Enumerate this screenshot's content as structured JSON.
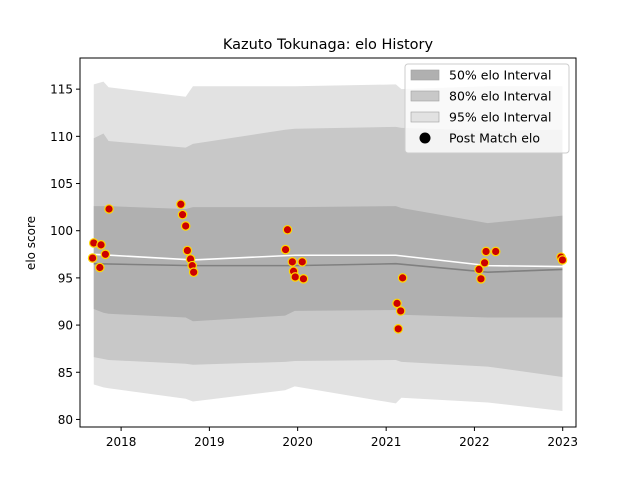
{
  "chart_data": {
    "type": "line",
    "title": "Kazuto Tokunaga: elo History",
    "xlabel": "",
    "ylabel": "elo score",
    "xlim": [
      "2017-07-15",
      "2023-02-25"
    ],
    "ylim": [
      79.2,
      118.3
    ],
    "xticks": [
      {
        "date": "2018-01-01",
        "label": "2018"
      },
      {
        "date": "2019-01-01",
        "label": "2019"
      },
      {
        "date": "2020-01-01",
        "label": "2020"
      },
      {
        "date": "2021-01-01",
        "label": "2021"
      },
      {
        "date": "2022-01-01",
        "label": "2022"
      },
      {
        "date": "2023-01-01",
        "label": "2023"
      }
    ],
    "yticks": [
      80,
      85,
      90,
      95,
      100,
      105,
      110,
      115
    ],
    "grid": false,
    "legend_position": "top-right",
    "colors": {
      "band_50": "#b0b0b0",
      "band_80": "#c8c8c8",
      "band_95": "#e2e2e2",
      "mean_line": "#808080",
      "median_line": "#ffffff",
      "marker_fill": "#cc0000",
      "marker_edge": "#ffd700"
    },
    "series": [
      {
        "name": "50% elo Interval",
        "kind": "band",
        "color": "#b0b0b0"
      },
      {
        "name": "80% elo Interval",
        "kind": "band",
        "color": "#c8c8c8"
      },
      {
        "name": "95% elo Interval",
        "kind": "band",
        "color": "#e2e2e2"
      },
      {
        "name": "Post Match elo",
        "kind": "marker",
        "color": "#000000"
      }
    ],
    "bands": {
      "x": [
        "2017-09-10",
        "2017-10-20",
        "2017-11-10",
        "2018-09-25",
        "2018-10-25",
        "2019-11-10",
        "2019-12-20",
        "2021-02-10",
        "2021-03-05",
        "2022-02-25",
        "2022-12-31"
      ],
      "p95_upper": [
        115.5,
        115.8,
        115.2,
        114.2,
        115.3,
        115.3,
        115.3,
        115.5,
        115.0,
        115.3,
        115.3
      ],
      "p80_upper": [
        109.8,
        110.3,
        109.5,
        108.8,
        109.2,
        110.7,
        110.8,
        111.0,
        110.9,
        110.6,
        110.7
      ],
      "p50_upper": [
        102.6,
        102.6,
        102.6,
        102.3,
        102.5,
        102.5,
        102.5,
        102.6,
        102.4,
        100.8,
        101.6
      ],
      "p50_lower": [
        91.7,
        91.3,
        91.2,
        90.8,
        90.4,
        91.0,
        91.5,
        91.6,
        91.1,
        90.8,
        90.8
      ],
      "p80_lower": [
        86.6,
        86.4,
        86.3,
        85.9,
        85.8,
        86.1,
        86.2,
        86.3,
        86.1,
        85.6,
        84.5
      ],
      "p95_lower": [
        83.7,
        83.4,
        83.3,
        82.2,
        81.9,
        83.1,
        83.5,
        81.7,
        82.3,
        81.8,
        80.9
      ]
    },
    "mean_line": {
      "x": [
        "2017-09-10",
        "2018-10-25",
        "2019-12-20",
        "2021-02-10",
        "2022-02-25",
        "2022-12-31"
      ],
      "y": [
        96.5,
        96.3,
        96.3,
        96.5,
        95.6,
        95.9
      ]
    },
    "median_line": {
      "x": [
        "2017-09-10",
        "2018-10-25",
        "2019-12-20",
        "2021-02-10",
        "2022-02-25",
        "2022-12-31"
      ],
      "y": [
        97.5,
        96.9,
        97.4,
        97.4,
        96.3,
        96.2
      ]
    },
    "points": [
      {
        "x": "2017-09-05",
        "y": 97.1
      },
      {
        "x": "2017-09-10",
        "y": 98.7
      },
      {
        "x": "2017-10-05",
        "y": 96.1
      },
      {
        "x": "2017-10-10",
        "y": 98.5
      },
      {
        "x": "2017-10-28",
        "y": 97.5
      },
      {
        "x": "2017-11-12",
        "y": 102.3
      },
      {
        "x": "2018-09-05",
        "y": 102.8
      },
      {
        "x": "2018-09-12",
        "y": 101.7
      },
      {
        "x": "2018-09-25",
        "y": 100.5
      },
      {
        "x": "2018-10-02",
        "y": 97.9
      },
      {
        "x": "2018-10-15",
        "y": 97.0
      },
      {
        "x": "2018-10-22",
        "y": 96.3
      },
      {
        "x": "2018-10-28",
        "y": 95.6
      },
      {
        "x": "2019-11-12",
        "y": 98.0
      },
      {
        "x": "2019-11-20",
        "y": 100.1
      },
      {
        "x": "2019-12-10",
        "y": 96.7
      },
      {
        "x": "2019-12-15",
        "y": 95.7
      },
      {
        "x": "2019-12-22",
        "y": 95.1
      },
      {
        "x": "2020-01-20",
        "y": 96.7
      },
      {
        "x": "2020-01-25",
        "y": 94.9
      },
      {
        "x": "2021-02-15",
        "y": 92.3
      },
      {
        "x": "2021-02-20",
        "y": 89.6
      },
      {
        "x": "2021-03-02",
        "y": 91.5
      },
      {
        "x": "2021-03-10",
        "y": 95.0
      },
      {
        "x": "2022-01-20",
        "y": 95.9
      },
      {
        "x": "2022-01-28",
        "y": 94.9
      },
      {
        "x": "2022-02-12",
        "y": 96.6
      },
      {
        "x": "2022-02-18",
        "y": 97.8
      },
      {
        "x": "2022-03-30",
        "y": 97.8
      },
      {
        "x": "2022-12-25",
        "y": 97.2
      },
      {
        "x": "2022-12-31",
        "y": 96.9
      }
    ]
  }
}
